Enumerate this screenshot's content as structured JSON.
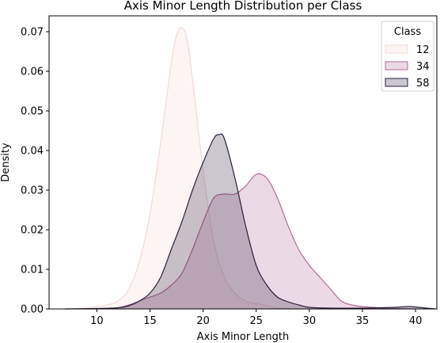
{
  "chart_data": {
    "type": "area",
    "title": "Axis Minor Length Distribution per Class",
    "xlabel": "Axis Minor Length",
    "ylabel": "Density",
    "xlim": [
      5.5,
      42
    ],
    "ylim": [
      0,
      0.074
    ],
    "x_ticks": [
      10,
      15,
      20,
      25,
      30,
      35,
      40
    ],
    "y_ticks": [
      0.0,
      0.01,
      0.02,
      0.03,
      0.04,
      0.05,
      0.06,
      0.07
    ],
    "y_tick_labels": [
      "0.00",
      "0.01",
      "0.02",
      "0.03",
      "0.04",
      "0.05",
      "0.06",
      "0.07"
    ],
    "legend": {
      "title": "Class",
      "position": "top-right"
    },
    "grid": false,
    "series": [
      {
        "name": "12",
        "color": "#f2d9d3",
        "points": [
          [
            8,
            0
          ],
          [
            9,
            0.0002
          ],
          [
            10,
            0.0006
          ],
          [
            11,
            0.001
          ],
          [
            12,
            0.002
          ],
          [
            13,
            0.005
          ],
          [
            14,
            0.012
          ],
          [
            15,
            0.024
          ],
          [
            16,
            0.042
          ],
          [
            17,
            0.062
          ],
          [
            17.5,
            0.069
          ],
          [
            18,
            0.071
          ],
          [
            18.5,
            0.068
          ],
          [
            19,
            0.058
          ],
          [
            20,
            0.035
          ],
          [
            21,
            0.017
          ],
          [
            22,
            0.008
          ],
          [
            23,
            0.004
          ],
          [
            24,
            0.002
          ],
          [
            25,
            0.0014
          ],
          [
            26,
            0.0008
          ],
          [
            27,
            0.0003
          ],
          [
            28,
            0.0001
          ],
          [
            30,
            0
          ]
        ]
      },
      {
        "name": "34",
        "color": "#b06b97",
        "points": [
          [
            11,
            0
          ],
          [
            12,
            0.0003
          ],
          [
            13,
            0.001
          ],
          [
            14,
            0.002
          ],
          [
            15,
            0.003
          ],
          [
            16,
            0.004
          ],
          [
            17,
            0.006
          ],
          [
            18,
            0.009
          ],
          [
            19,
            0.015
          ],
          [
            20,
            0.022
          ],
          [
            21,
            0.028
          ],
          [
            22,
            0.029
          ],
          [
            23,
            0.029
          ],
          [
            24,
            0.031
          ],
          [
            25,
            0.034
          ],
          [
            26,
            0.033
          ],
          [
            27,
            0.028
          ],
          [
            28,
            0.021
          ],
          [
            29,
            0.015
          ],
          [
            30,
            0.011
          ],
          [
            31,
            0.008
          ],
          [
            32,
            0.005
          ],
          [
            33,
            0.002
          ],
          [
            34,
            0.001
          ],
          [
            35,
            0.0006
          ],
          [
            36,
            0.0004
          ],
          [
            37,
            0.0002
          ],
          [
            38,
            0.0001
          ],
          [
            40,
            0
          ]
        ]
      },
      {
        "name": "58",
        "color": "#2c1e3d",
        "points": [
          [
            7,
            0
          ],
          [
            10,
            0.0001
          ],
          [
            12,
            0.0003
          ],
          [
            13,
            0.0008
          ],
          [
            14,
            0.002
          ],
          [
            15,
            0.004
          ],
          [
            16,
            0.008
          ],
          [
            17,
            0.015
          ],
          [
            18,
            0.022
          ],
          [
            19,
            0.03
          ],
          [
            20,
            0.037
          ],
          [
            21,
            0.043
          ],
          [
            21.5,
            0.044
          ],
          [
            22,
            0.043
          ],
          [
            23,
            0.033
          ],
          [
            24,
            0.021
          ],
          [
            25,
            0.011
          ],
          [
            26,
            0.006
          ],
          [
            27,
            0.003
          ],
          [
            28,
            0.0018
          ],
          [
            29,
            0.001
          ],
          [
            30,
            0.0004
          ],
          [
            32,
            0.0002
          ],
          [
            35,
            0.0002
          ],
          [
            38,
            0.0004
          ],
          [
            39.5,
            0.0006
          ],
          [
            41,
            0.0002
          ],
          [
            42,
            0
          ]
        ]
      }
    ]
  }
}
